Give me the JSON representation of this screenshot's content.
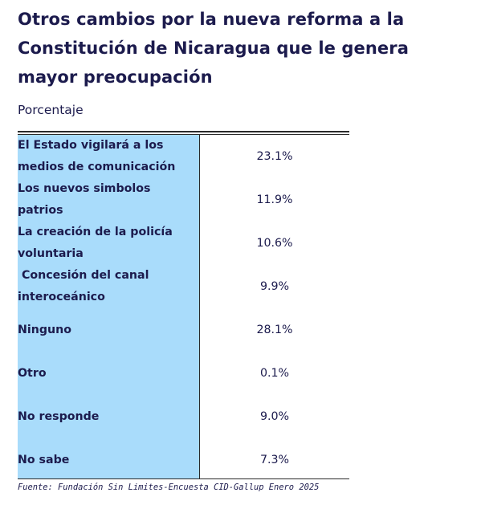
{
  "title": "Otros cambios por la nueva reforma a la Constitución de Nicaragua que le genera mayor preocupación",
  "subtitle": "Porcentaje",
  "source": "Fuente: Fundación Sin Limites-Encuesta CID-Gallup Enero 2025",
  "colors": {
    "label_column": "#a9dcfb",
    "text": "#1c1b4d",
    "rules": "#2a2a2a"
  },
  "chart_data": {
    "type": "table",
    "title": "Otros cambios por la nueva reforma a la Constitución de Nicaragua que le genera mayor preocupación",
    "subtitle": "Porcentaje",
    "rows": [
      {
        "label": "El Estado vigilará a los medios de comunicación",
        "value": 23.1,
        "display": "23.1%"
      },
      {
        "label": "Los nuevos simbolos patrios",
        "value": 11.9,
        "display": "11.9%"
      },
      {
        "label": "La creación de la policía voluntaria",
        "value": 10.6,
        "display": "10.6%"
      },
      {
        "label": " Concesión del canal interoceánico",
        "value": 9.9,
        "display": "9.9%"
      },
      {
        "label": "Ninguno",
        "value": 28.1,
        "display": "28.1%"
      },
      {
        "label": "Otro",
        "value": 0.1,
        "display": "0.1%"
      },
      {
        "label": "No responde",
        "value": 9.0,
        "display": "9.0%"
      },
      {
        "label": "No sabe",
        "value": 7.3,
        "display": "7.3%"
      }
    ]
  }
}
